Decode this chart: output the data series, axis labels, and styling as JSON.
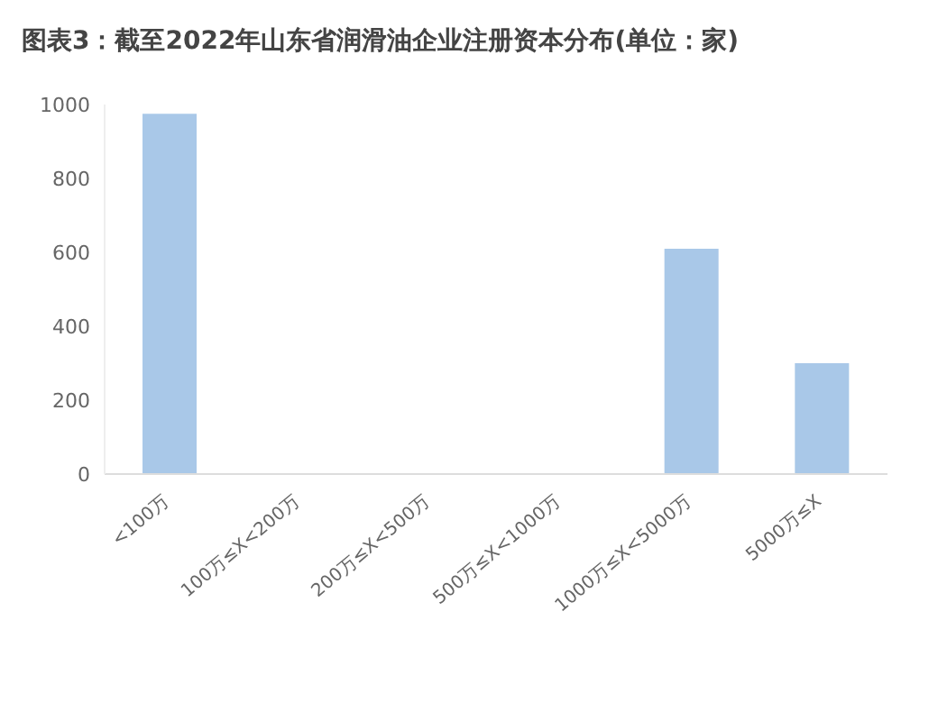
{
  "chart_data": {
    "type": "bar",
    "title": "图表3：截至2022年山东省润滑油企业注册资本分布(单位：家)",
    "categories": [
      "<100万",
      "100万≤X<200万",
      "200万≤X<500万",
      "500万≤X<1000万",
      "1000万≤X<5000万",
      "5000万≤X"
    ],
    "values": [
      975,
      null,
      null,
      null,
      610,
      300
    ],
    "color": "#a9c8e8",
    "ylim": [
      0,
      1000
    ],
    "yticks": [
      0,
      200,
      400,
      600,
      800,
      1000
    ],
    "grid": false
  }
}
